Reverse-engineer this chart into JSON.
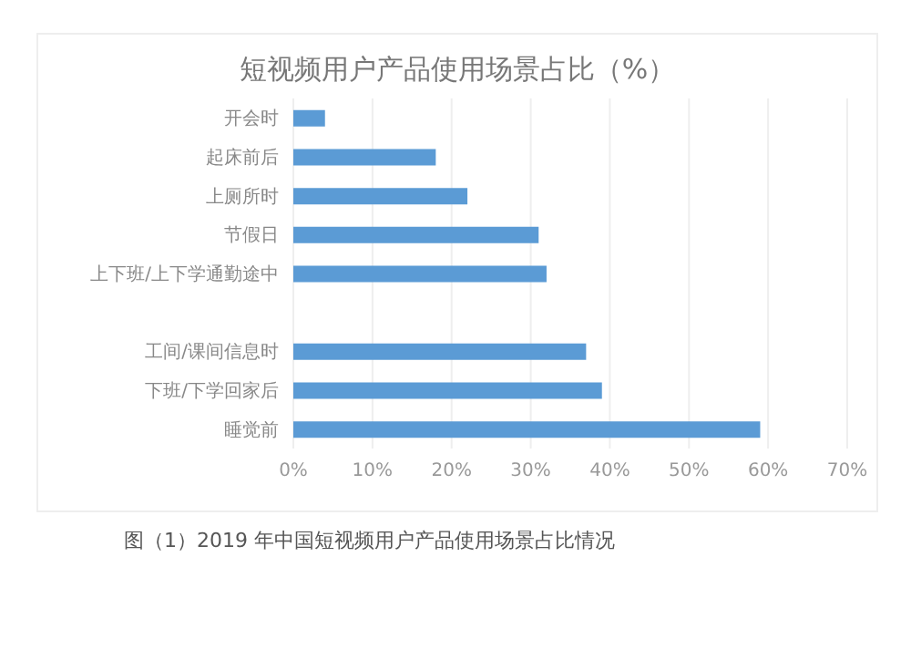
{
  "chart_data": {
    "type": "bar",
    "orientation": "horizontal",
    "title": "短视频用户产品使用场景占比（%）",
    "categories": [
      "开会时",
      "起床前后",
      "上厕所时",
      "节假日",
      "上下班/上下学通勤途中",
      null,
      "工间/课间信息时",
      "下班/下学回家后",
      "睡觉前"
    ],
    "values": [
      4,
      18,
      22,
      31,
      32,
      null,
      37,
      39,
      59
    ],
    "color": "#5b9bd5",
    "xlim": [
      0,
      70
    ],
    "xticks": [
      {
        "value": 0,
        "label": "0%"
      },
      {
        "value": 10,
        "label": "10%"
      },
      {
        "value": 20,
        "label": "20%"
      },
      {
        "value": 30,
        "label": "30%"
      },
      {
        "value": 40,
        "label": "40%"
      },
      {
        "value": 50,
        "label": "50%"
      },
      {
        "value": 60,
        "label": "60%"
      },
      {
        "value": 70,
        "label": "70%"
      }
    ],
    "grid": "x",
    "annotations": [
      "图（1）2019 年中国短视频用户产品使用场景占比情况"
    ]
  }
}
